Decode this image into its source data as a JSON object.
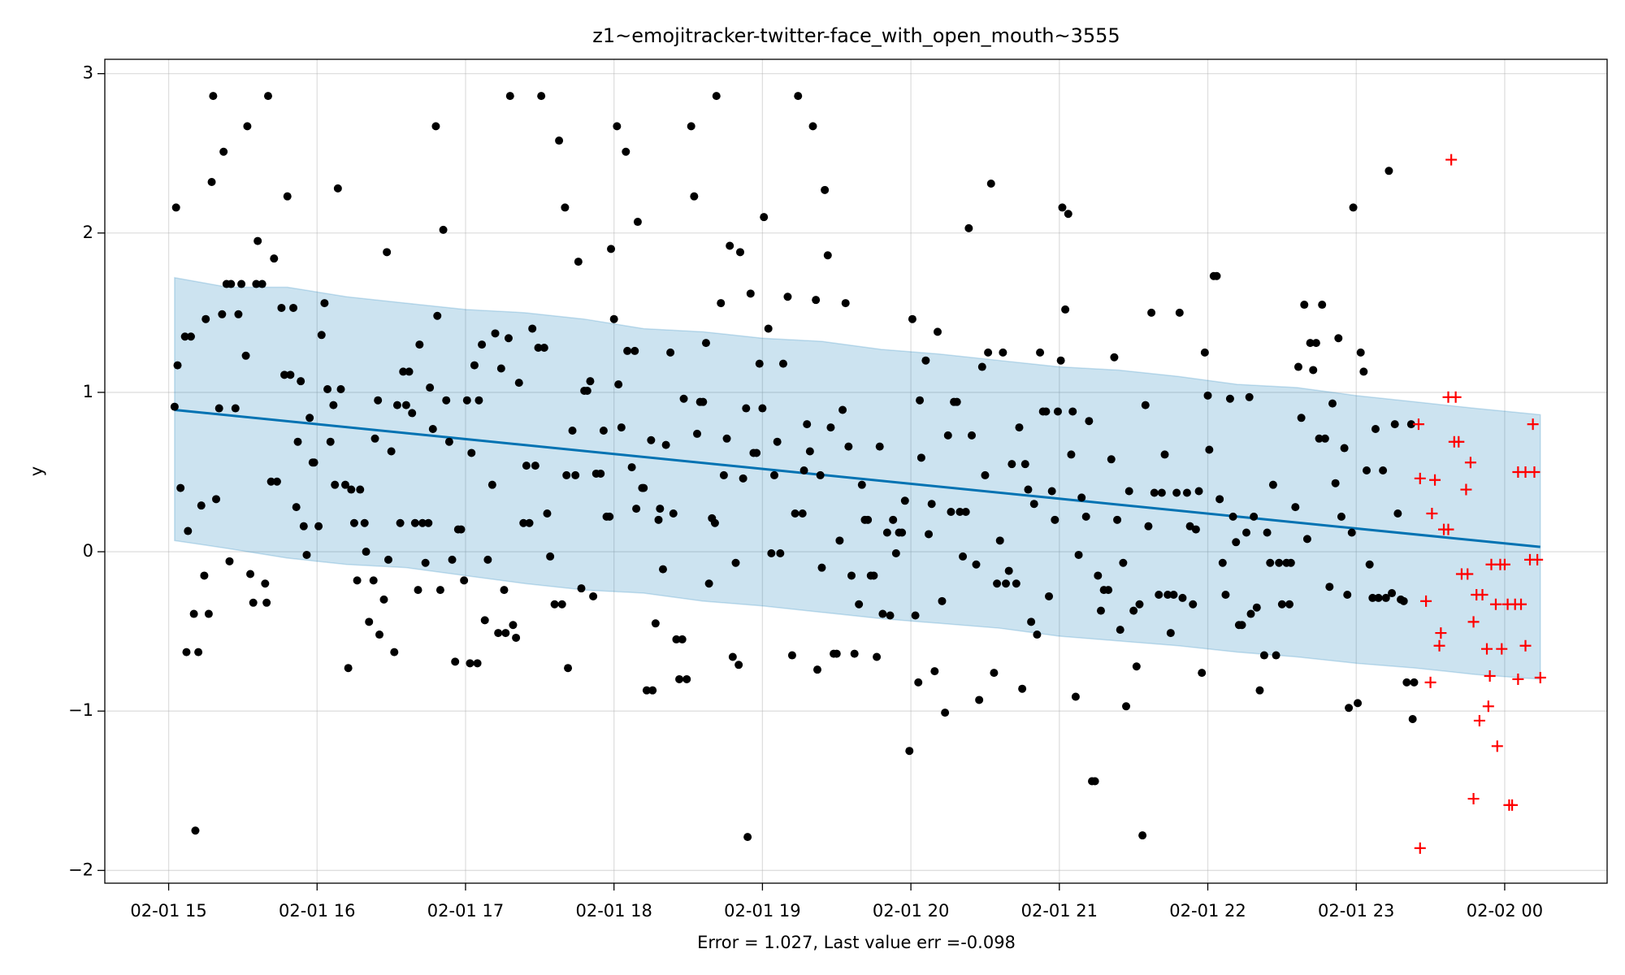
{
  "chart_data": {
    "type": "line",
    "title": "z1~emojitracker-twitter-face_with_open_mouth~3555",
    "xlabel": "Error = 1.027, Last value err =-0.098",
    "ylabel": "y",
    "xlim": [
      14.57,
      24.69
    ],
    "ylim": [
      -2.08,
      3.09
    ],
    "xticks": [
      {
        "value": 15,
        "label": "02-01 15"
      },
      {
        "value": 16,
        "label": "02-01 16"
      },
      {
        "value": 17,
        "label": "02-01 17"
      },
      {
        "value": 18,
        "label": "02-01 18"
      },
      {
        "value": 19,
        "label": "02-01 19"
      },
      {
        "value": 20,
        "label": "02-01 20"
      },
      {
        "value": 21,
        "label": "02-01 21"
      },
      {
        "value": 22,
        "label": "02-01 22"
      },
      {
        "value": 23,
        "label": "02-01 23"
      },
      {
        "value": 24,
        "label": "02-02 00"
      }
    ],
    "yticks": [
      {
        "value": -2,
        "label": "−2"
      },
      {
        "value": -1,
        "label": "−1"
      },
      0,
      1,
      2,
      3
    ],
    "grid": true,
    "series": [
      {
        "type": "area",
        "color": "#0072b2",
        "x": [
          15.04,
          15.4,
          15.8,
          16.2,
          16.6,
          17.0,
          17.4,
          17.8,
          18.2,
          18.6,
          19.0,
          19.4,
          19.8,
          20.2,
          20.6,
          21.0,
          21.4,
          21.8,
          22.2,
          22.6,
          23.0,
          23.4,
          23.8,
          24.24
        ],
        "values": [
          1.72,
          1.66,
          1.66,
          1.6,
          1.56,
          1.52,
          1.5,
          1.46,
          1.4,
          1.38,
          1.34,
          1.32,
          1.27,
          1.24,
          1.2,
          1.16,
          1.14,
          1.1,
          1.05,
          1.03,
          0.98,
          0.94,
          0.9,
          0.86
        ],
        "lower": [
          0.07,
          0.02,
          -0.04,
          -0.08,
          -0.1,
          -0.15,
          -0.2,
          -0.24,
          -0.26,
          -0.31,
          -0.34,
          -0.38,
          -0.42,
          -0.45,
          -0.48,
          -0.53,
          -0.56,
          -0.59,
          -0.63,
          -0.66,
          -0.7,
          -0.73,
          -0.77,
          -0.8
        ]
      },
      {
        "type": "line",
        "color": "#0072b2",
        "x": [
          15.04,
          24.24
        ],
        "values": [
          0.89,
          0.03
        ]
      },
      {
        "type": "scatter",
        "marker": "o",
        "color": "#000000",
        "x": [
          15.04,
          15.05,
          15.06,
          15.08,
          15.11,
          15.12,
          15.13,
          15.15,
          15.17,
          15.18,
          15.2,
          15.22,
          15.24,
          15.25,
          15.27,
          15.29,
          15.3,
          15.32,
          15.34,
          15.36,
          15.37,
          15.39,
          15.41,
          15.42,
          15.45,
          15.47,
          15.49,
          15.52,
          15.53,
          15.55,
          15.57,
          15.59,
          15.6,
          15.63,
          15.65,
          15.66,
          15.67,
          15.69,
          15.71,
          15.73,
          15.76,
          15.78,
          15.8,
          15.82,
          15.84,
          15.86,
          15.87,
          15.89,
          15.91,
          15.93,
          15.95,
          15.97,
          15.98,
          16.01,
          16.03,
          16.05,
          16.07,
          16.09,
          16.11,
          16.12,
          16.14,
          16.16,
          16.19,
          16.21,
          16.23,
          16.25,
          16.27,
          16.29,
          16.32,
          16.33,
          16.35,
          16.38,
          16.39,
          16.41,
          16.42,
          16.45,
          16.47,
          16.48,
          16.5,
          16.52,
          16.54,
          16.56,
          16.58,
          16.6,
          16.62,
          16.64,
          16.66,
          16.68,
          16.69,
          16.71,
          16.73,
          16.75,
          16.76,
          16.78,
          16.8,
          16.81,
          16.83,
          16.85,
          16.87,
          16.89,
          16.91,
          16.93,
          16.95,
          16.97,
          16.99,
          17.01,
          17.03,
          17.04,
          17.06,
          17.08,
          17.09,
          17.11,
          17.13,
          17.15,
          17.18,
          17.2,
          17.22,
          17.24,
          17.26,
          17.27,
          17.29,
          17.3,
          17.32,
          17.34,
          17.36,
          17.39,
          17.41,
          17.43,
          17.45,
          17.47,
          17.49,
          17.51,
          17.53,
          17.55,
          17.57,
          17.6,
          17.63,
          17.65,
          17.67,
          17.68,
          17.69,
          17.72,
          17.74,
          17.76,
          17.78,
          17.8,
          17.82,
          17.84,
          17.86,
          17.88,
          17.91,
          17.93,
          17.95,
          17.97,
          17.98,
          18.0,
          18.02,
          18.03,
          18.05,
          18.08,
          18.09,
          18.12,
          18.14,
          18.15,
          18.16,
          18.19,
          18.2,
          18.22,
          18.25,
          18.26,
          18.28,
          18.3,
          18.31,
          18.33,
          18.35,
          18.38,
          18.4,
          18.42,
          18.44,
          18.46,
          18.47,
          18.49,
          18.52,
          18.54,
          18.56,
          18.58,
          18.6,
          18.62,
          18.64,
          18.66,
          18.68,
          18.69,
          18.72,
          18.74,
          18.76,
          18.78,
          18.8,
          18.82,
          18.84,
          18.85,
          18.87,
          18.89,
          18.9,
          18.92,
          18.94,
          18.96,
          18.98,
          19.0,
          19.01,
          19.04,
          19.06,
          19.08,
          19.1,
          19.12,
          19.14,
          19.17,
          19.2,
          19.22,
          19.24,
          19.27,
          19.28,
          19.3,
          19.32,
          19.34,
          19.36,
          19.37,
          19.39,
          19.4,
          19.42,
          19.44,
          19.46,
          19.48,
          19.5,
          19.52,
          19.54,
          19.56,
          19.58,
          19.6,
          19.62,
          19.65,
          19.67,
          19.69,
          19.71,
          19.73,
          19.75,
          19.77,
          19.79,
          19.81,
          19.84,
          19.86,
          19.88,
          19.9,
          19.92,
          19.94,
          19.96,
          19.99,
          20.01,
          20.03,
          20.05,
          20.06,
          20.07,
          20.1,
          20.12,
          20.14,
          20.16,
          20.18,
          20.21,
          20.23,
          20.25,
          20.27,
          20.29,
          20.31,
          20.33,
          20.35,
          20.37,
          20.39,
          20.41,
          20.44,
          20.46,
          20.48,
          20.5,
          20.52,
          20.54,
          20.56,
          20.58,
          20.6,
          20.62,
          20.64,
          20.66,
          20.68,
          20.71,
          20.73,
          20.75,
          20.77,
          20.79,
          20.81,
          20.83,
          20.85,
          20.87,
          20.89,
          20.91,
          20.93,
          20.95,
          20.97,
          20.99,
          21.01,
          21.02,
          21.04,
          21.06,
          21.08,
          21.09,
          21.11,
          21.13,
          21.15,
          21.18,
          21.2,
          21.22,
          21.24,
          21.26,
          21.28,
          21.3,
          21.33,
          21.35,
          21.37,
          21.39,
          21.41,
          21.43,
          21.45,
          21.47,
          21.5,
          21.52,
          21.54,
          21.56,
          21.58,
          21.6,
          21.62,
          21.64,
          21.67,
          21.69,
          21.71,
          21.73,
          21.75,
          21.77,
          21.79,
          21.81,
          21.83,
          21.86,
          21.88,
          21.9,
          21.92,
          21.94,
          21.96,
          21.98,
          22.0,
          22.01,
          22.04,
          22.06,
          22.08,
          22.1,
          22.12,
          22.15,
          22.17,
          22.19,
          22.21,
          22.23,
          22.26,
          22.28,
          22.29,
          22.31,
          22.33,
          22.35,
          22.38,
          22.4,
          22.42,
          22.44,
          22.46,
          22.48,
          22.5,
          22.53,
          22.55,
          22.56,
          22.59,
          22.61,
          22.63,
          22.65,
          22.67,
          22.69,
          22.71,
          22.73,
          22.75,
          22.77,
          22.79,
          22.82,
          22.84,
          22.86,
          22.88,
          22.9,
          22.92,
          22.94,
          22.95,
          22.97,
          22.98,
          23.01,
          23.03,
          23.05,
          23.07,
          23.09,
          23.11,
          23.13,
          23.15,
          23.18,
          23.2,
          23.22,
          23.24,
          23.26,
          23.28,
          23.3,
          23.32,
          23.34,
          23.37,
          23.38,
          23.39
        ],
        "values": [
          0.91,
          2.16,
          1.17,
          0.4,
          1.35,
          -0.63,
          0.13,
          1.35,
          -0.39,
          -1.75,
          -0.63,
          0.29,
          -0.15,
          1.46,
          -0.39,
          2.32,
          2.86,
          0.33,
          0.9,
          1.49,
          2.51,
          1.68,
          -0.06,
          1.68,
          0.9,
          1.49,
          1.68,
          1.23,
          2.67,
          -0.14,
          -0.32,
          1.68,
          1.95,
          1.68,
          -0.2,
          -0.32,
          2.86,
          0.44,
          1.84,
          0.44,
          1.53,
          1.11,
          2.23,
          1.11,
          1.53,
          0.28,
          0.69,
          1.07,
          0.16,
          -0.02,
          0.84,
          0.56,
          0.56,
          0.16,
          1.36,
          1.56,
          1.02,
          0.69,
          0.92,
          0.42,
          2.28,
          1.02,
          0.42,
          -0.73,
          0.39,
          0.18,
          -0.18,
          0.39,
          0.18,
          0.0,
          -0.44,
          -0.18,
          0.71,
          0.95,
          -0.52,
          -0.3,
          1.88,
          -0.05,
          0.63,
          -0.63,
          0.92,
          0.18,
          1.13,
          0.92,
          1.13,
          0.87,
          0.18,
          -0.24,
          1.3,
          0.18,
          -0.07,
          0.18,
          1.03,
          0.77,
          2.67,
          1.48,
          -0.24,
          2.02,
          0.95,
          0.69,
          -0.05,
          -0.69,
          0.14,
          0.14,
          -0.18,
          0.95,
          -0.7,
          0.62,
          1.17,
          -0.7,
          0.95,
          1.3,
          -0.43,
          -0.05,
          0.42,
          1.37,
          -0.51,
          1.15,
          -0.24,
          -0.51,
          1.34,
          2.86,
          -0.46,
          -0.54,
          1.06,
          0.18,
          0.54,
          0.18,
          1.4,
          0.54,
          1.28,
          2.86,
          1.28,
          0.24,
          -0.03,
          -0.33,
          2.58,
          -0.33,
          2.16,
          0.48,
          -0.73,
          0.76,
          0.48,
          1.82,
          -0.23,
          1.01,
          1.01,
          1.07,
          -0.28,
          0.49,
          0.49,
          0.76,
          0.22,
          0.22,
          1.9,
          1.46,
          2.67,
          1.05,
          0.78,
          2.51,
          1.26,
          0.53,
          1.26,
          0.27,
          2.07,
          0.4,
          0.4,
          -0.87,
          0.7,
          -0.87,
          -0.45,
          0.2,
          0.27,
          -0.11,
          0.67,
          1.25,
          0.24,
          -0.55,
          -0.8,
          -0.55,
          0.96,
          -0.8,
          2.67,
          2.23,
          0.74,
          0.94,
          0.94,
          1.31,
          -0.2,
          0.21,
          0.18,
          2.86,
          1.56,
          0.48,
          0.71,
          1.92,
          -0.66,
          -0.07,
          -0.71,
          1.88,
          0.46,
          0.9,
          -1.79,
          1.62,
          0.62,
          0.62,
          1.18,
          0.9,
          2.1,
          1.4,
          -0.01,
          0.48,
          0.69,
          -0.01,
          1.18,
          1.6,
          -0.65,
          0.24,
          2.86,
          0.24,
          0.51,
          0.8,
          0.63,
          2.67,
          1.58,
          -0.74,
          0.48,
          -0.1,
          2.27,
          1.86,
          0.78,
          -0.64,
          -0.64,
          0.07,
          0.89,
          1.56,
          0.66,
          -0.15,
          -0.64,
          -0.33,
          0.42,
          0.2,
          0.2,
          -0.15,
          -0.15,
          -0.66,
          0.66,
          -0.39,
          0.12,
          -0.4,
          0.2,
          -0.01,
          0.12,
          0.12,
          0.32,
          -1.25,
          1.46,
          -0.4,
          -0.82,
          0.95,
          0.59,
          1.2,
          0.11,
          0.3,
          -0.75,
          1.38,
          -0.31,
          -1.01,
          0.73,
          0.25,
          0.94,
          0.94,
          0.25,
          -0.03,
          0.25,
          2.03,
          0.73,
          -0.08,
          -0.93,
          1.16,
          0.48,
          1.25,
          2.31,
          -0.76,
          -0.2,
          0.07,
          1.25,
          -0.2,
          -0.12,
          0.55,
          -0.2,
          0.78,
          -0.86,
          0.55,
          0.39,
          -0.44,
          0.3,
          -0.52,
          1.25,
          0.88,
          0.88,
          -0.28,
          0.38,
          0.2,
          0.88,
          1.2,
          2.16,
          1.52,
          2.12,
          0.61,
          0.88,
          -0.91,
          -0.02,
          0.34,
          0.22,
          0.82,
          -1.44,
          -1.44,
          -0.15,
          -0.37,
          -0.24,
          -0.24,
          0.58,
          1.22,
          0.2,
          -0.49,
          -0.07,
          -0.97,
          0.38,
          -0.37,
          -0.72,
          -0.33,
          -1.78,
          0.92,
          0.16,
          1.5,
          0.37,
          -0.27,
          0.37,
          0.61,
          -0.27,
          -0.51,
          -0.27,
          0.37,
          1.5,
          -0.29,
          0.37,
          0.16,
          -0.33,
          0.14,
          0.38,
          -0.76,
          1.25,
          0.98,
          0.64,
          1.73,
          1.73,
          0.33,
          -0.07,
          -0.27,
          0.96,
          0.22,
          0.06,
          -0.46,
          -0.46,
          0.12,
          0.97,
          -0.39,
          0.22,
          -0.35,
          -0.87,
          -0.65,
          0.12,
          -0.07,
          0.42,
          -0.65,
          -0.07,
          -0.33,
          -0.07,
          -0.33,
          -0.07,
          0.28,
          1.16,
          0.84,
          1.55,
          0.08,
          1.31,
          1.14,
          1.31,
          0.71,
          1.55,
          0.71,
          -0.22,
          0.93,
          0.43,
          1.34,
          0.22,
          0.65,
          -0.27,
          -0.98,
          0.12,
          2.16,
          -0.95,
          1.25,
          1.13,
          0.51,
          -0.08,
          -0.29,
          0.77,
          -0.29,
          0.51,
          -0.29,
          2.39,
          -0.26,
          0.8,
          0.24,
          -0.3,
          -0.31,
          -0.82,
          0.8,
          -1.05,
          -0.82
        ]
      },
      {
        "type": "scatter",
        "marker": "+",
        "color": "#ff0000",
        "x": [
          23.42,
          23.43,
          23.43,
          23.47,
          23.5,
          23.51,
          23.53,
          23.56,
          23.57,
          23.59,
          23.62,
          23.62,
          23.64,
          23.67,
          23.66,
          23.69,
          23.71,
          23.74,
          23.75,
          23.77,
          23.79,
          23.79,
          23.81,
          23.83,
          23.85,
          23.88,
          23.89,
          23.9,
          23.91,
          23.94,
          23.95,
          23.97,
          23.98,
          24.0,
          24.02,
          24.03,
          24.05,
          24.07,
          24.09,
          24.09,
          24.11,
          24.14,
          24.14,
          24.17,
          24.19,
          24.2,
          24.22,
          24.24
        ],
        "values": [
          0.8,
          -1.86,
          0.46,
          -0.31,
          -0.82,
          0.24,
          0.45,
          -0.59,
          -0.51,
          0.14,
          0.14,
          0.97,
          2.46,
          0.97,
          0.69,
          0.69,
          -0.14,
          0.39,
          -0.14,
          0.56,
          -0.44,
          -1.55,
          -0.27,
          -1.06,
          -0.27,
          -0.61,
          -0.97,
          -0.78,
          -0.08,
          -0.33,
          -1.22,
          -0.08,
          -0.61,
          -0.08,
          -0.33,
          -1.59,
          -1.59,
          -0.33,
          -0.8,
          0.5,
          -0.33,
          -0.59,
          0.5,
          -0.05,
          0.8,
          0.5,
          -0.05,
          -0.79
        ]
      }
    ]
  }
}
